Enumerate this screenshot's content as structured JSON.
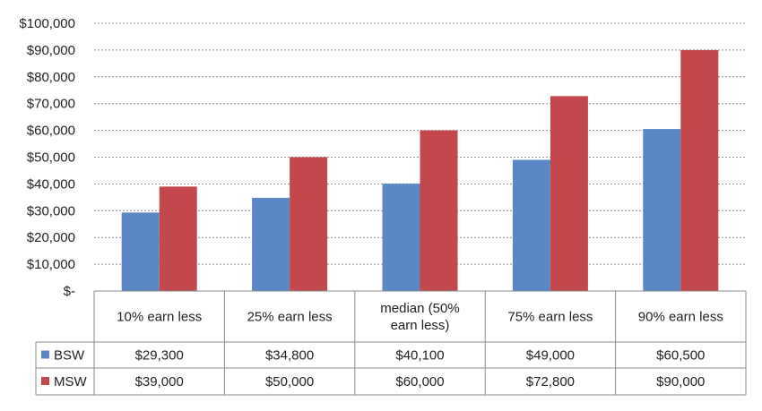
{
  "chart_data": {
    "type": "bar",
    "categories": [
      "10% earn less",
      "25% earn less",
      "median (50% earn less)",
      "75% earn less",
      "90% earn less"
    ],
    "category_lines": [
      [
        "10% earn less"
      ],
      [
        "25% earn less"
      ],
      [
        "median (50%",
        "earn less)"
      ],
      [
        "75% earn less"
      ],
      [
        "90% earn less"
      ]
    ],
    "series": [
      {
        "name": "BSW",
        "color": "#5b87c6",
        "values": [
          29300,
          34800,
          40100,
          49000,
          60500
        ],
        "labels": [
          "$29,300",
          "$34,800",
          "$40,100",
          "$49,000",
          "$60,500"
        ]
      },
      {
        "name": "MSW",
        "color": "#c3484b",
        "values": [
          39000,
          50000,
          60000,
          72800,
          90000
        ],
        "labels": [
          "$39,000",
          "$50,000",
          "$60,000",
          "$72,800",
          "$90,000"
        ]
      }
    ],
    "ylim": [
      0,
      100000
    ],
    "y_ticks": [
      0,
      10000,
      20000,
      30000,
      40000,
      50000,
      60000,
      70000,
      80000,
      90000,
      100000
    ],
    "y_tick_labels": [
      "$-",
      "$10,000",
      "$20,000",
      "$30,000",
      "$40,000",
      "$50,000",
      "$60,000",
      "$70,000",
      "$80,000",
      "$90,000",
      "$100,000"
    ],
    "grid": true,
    "legend": "data-table"
  }
}
